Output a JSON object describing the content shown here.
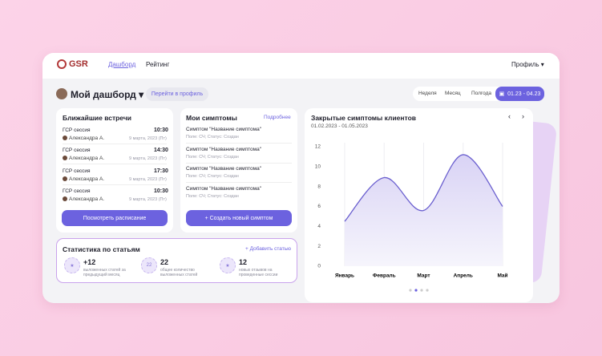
{
  "nav": {
    "logo": "GSR",
    "links": [
      "Дашборд",
      "Рейтинг"
    ],
    "profile": "Профиль"
  },
  "header": {
    "title": "Мой дашборд",
    "profile_button": "Перейти в профиль",
    "periods": [
      "Неделя",
      "Месяц",
      "Полгода"
    ],
    "date_range": "01.23 - 04.23"
  },
  "meetings": {
    "title": "Ближайшие встречи",
    "items": [
      {
        "title": "ГСР сессия",
        "time": "10:30",
        "person": "Александра А.",
        "date": "9 марта, 2023 (Пт)"
      },
      {
        "title": "ГСР сессия",
        "time": "14:30",
        "person": "Александра А.",
        "date": "9 марта, 2023 (Пт)"
      },
      {
        "title": "ГСР сессия",
        "time": "17:30",
        "person": "Александра А.",
        "date": "9 марта, 2023 (Пт)"
      },
      {
        "title": "ГСР сессия",
        "time": "10:30",
        "person": "Александра А.",
        "date": "9 марта, 2023 (Пт)"
      }
    ],
    "button": "Посмотреть расписание"
  },
  "symptoms": {
    "title": "Мои симптомы",
    "link": "Подробнее",
    "items": [
      {
        "title": "Симптом \"Название симптома\"",
        "meta": "Поле: СЧ; Статус: Создан"
      },
      {
        "title": "Симптом \"Название симптома\"",
        "meta": "Поле: СЧ; Статус: Создан"
      },
      {
        "title": "Симптом \"Название симптома\"",
        "meta": "Поле: СЧ; Статус: Создан"
      },
      {
        "title": "Симптом \"Название симптома\"",
        "meta": "Поле: СЧ; Статус: Создан"
      }
    ],
    "button": "+ Создать новый симптом"
  },
  "stats": {
    "title": "Статистика по статьям",
    "link": "+ Добавить статью",
    "items": [
      {
        "value": "+12",
        "label": "выложенных статей за предыдущий месяц"
      },
      {
        "value": "22",
        "label": "общее количество выложенных статей"
      },
      {
        "value": "12",
        "label": "новых отзывов на проведенные сессии"
      }
    ]
  },
  "chart": {
    "type": "line",
    "title": "Закрытые симптомы клиентов",
    "subtitle": "01.02.2023 - 01.05.2023",
    "categories": [
      "Январь",
      "Февраль",
      "Март",
      "Апрель",
      "Май"
    ],
    "values": [
      4.5,
      8.9,
      5.6,
      11.2,
      6
    ],
    "color": "#6a5fcf",
    "ylim": [
      0,
      12
    ],
    "yticks": [
      0,
      2,
      4,
      6,
      8,
      10,
      12
    ]
  }
}
